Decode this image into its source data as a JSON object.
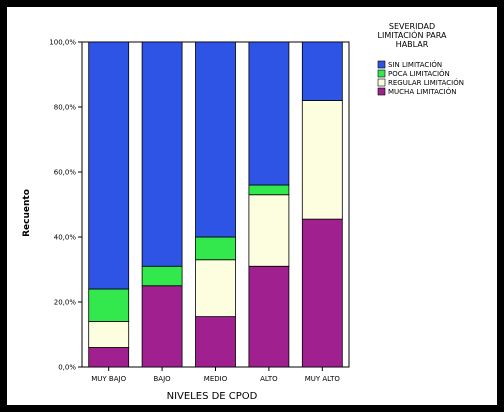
{
  "chart_data": {
    "type": "bar",
    "stacked": true,
    "categories": [
      "MUY BAJO",
      "BAJO",
      "MEDIO",
      "ALTO",
      "MUY ALTO"
    ],
    "series": [
      {
        "name": "MUCHA LIMITACIÓN",
        "color": "#a0208f",
        "values": [
          6,
          25,
          15.5,
          31,
          45.5
        ]
      },
      {
        "name": "REGULAR LIMITACIÓN",
        "color": "#fdfde0",
        "values": [
          8,
          0,
          17.5,
          22,
          36.5
        ]
      },
      {
        "name": "POCA LIMITACIÓN",
        "color": "#33e84c",
        "values": [
          10,
          6,
          7,
          3,
          0
        ]
      },
      {
        "name": "SIN LIMITACIÓN",
        "color": "#2e54e6",
        "values": [
          76,
          69,
          60,
          44,
          18
        ]
      }
    ],
    "legend_order": [
      "SIN LIMITACIÓN",
      "POCA LIMITACIÓN",
      "REGULAR LIMITACIÓN",
      "MUCHA LIMITACIÓN"
    ],
    "legend_title": [
      "SEVERIDAD",
      "LIMITACIÓN PARA",
      "HABLAR"
    ],
    "legend_position": "top-right",
    "xlabel": "NIVELES DE CPOD",
    "ylabel": "Recuento",
    "yticks": [
      "0,0%",
      "20,0%",
      "40,0%",
      "60,0%",
      "80,0%",
      "100,0%"
    ],
    "ylim": [
      0,
      100
    ],
    "grid": false
  }
}
